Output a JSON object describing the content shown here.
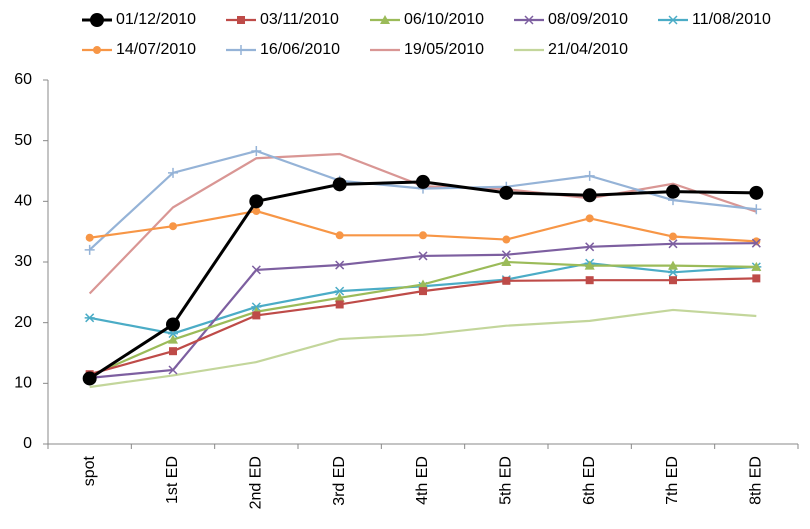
{
  "chart_data": {
    "type": "line",
    "categories": [
      "spot",
      "1st ED",
      "2nd ED",
      "3rd ED",
      "4th ED",
      "5th ED",
      "6th ED",
      "7th ED",
      "8th ED"
    ],
    "ylim": [
      0,
      60
    ],
    "yticks": [
      0,
      10,
      20,
      30,
      40,
      50,
      60
    ],
    "grid": false,
    "legend": "top",
    "series": [
      {
        "name": "01/12/2010",
        "color": "#000000",
        "marker": "circle-large",
        "values": [
          10.8,
          19.7,
          40,
          42.8,
          43.2,
          41.4,
          41,
          41.6,
          41.4
        ]
      },
      {
        "name": "03/11/2010",
        "color": "#be4b48",
        "marker": "square",
        "values": [
          11.5,
          15.3,
          21.2,
          23,
          25.2,
          26.9,
          27,
          27,
          27.3
        ]
      },
      {
        "name": "06/10/2010",
        "color": "#9bbb59",
        "marker": "triangle",
        "values": [
          11.2,
          17.2,
          21.8,
          24.1,
          26.3,
          30,
          29.4,
          29.4,
          29.2
        ]
      },
      {
        "name": "08/09/2010",
        "color": "#7d5fa0",
        "marker": "x",
        "values": [
          10.9,
          12.2,
          28.7,
          29.5,
          31,
          31.2,
          32.5,
          33,
          33.1
        ]
      },
      {
        "name": "11/08/2010",
        "color": "#4bacc6",
        "marker": "star",
        "values": [
          20.8,
          18.2,
          22.6,
          25.2,
          26,
          27.1,
          29.8,
          28.3,
          29.2
        ]
      },
      {
        "name": "14/07/2010",
        "color": "#f79646",
        "marker": "circle",
        "values": [
          34,
          35.9,
          38.4,
          34.4,
          34.4,
          33.7,
          37.2,
          34.2,
          33.4
        ]
      },
      {
        "name": "16/06/2010",
        "color": "#95b3d7",
        "marker": "plus",
        "values": [
          32,
          44.7,
          48.3,
          43.4,
          42.1,
          42.4,
          44.2,
          40.2,
          38.7
        ]
      },
      {
        "name": "19/05/2010",
        "color": "#d99694",
        "marker": "none",
        "values": [
          24.8,
          39,
          47.1,
          47.8,
          42.5,
          42,
          40.5,
          42.9,
          38.3
        ]
      },
      {
        "name": "21/04/2010",
        "color": "#c3d69b",
        "marker": "none",
        "values": [
          9.4,
          11.3,
          13.5,
          17.3,
          18,
          19.5,
          20.3,
          22.1,
          21.1
        ]
      }
    ]
  }
}
